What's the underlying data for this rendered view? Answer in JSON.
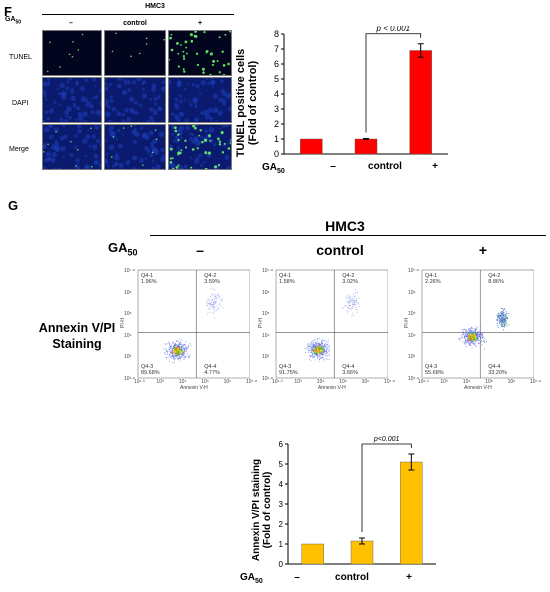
{
  "panel_f": {
    "letter": "F",
    "cell_line": "HMC3",
    "treatment_label": "GA",
    "treatment_sub": "50",
    "columns": [
      "–",
      "control",
      "+"
    ],
    "rows": [
      "TUNEL",
      "DAPI",
      "Merge"
    ]
  },
  "panel_g": {
    "letter": "G",
    "cell_line": "HMC3",
    "treatment_label": "GA",
    "treatment_sub": "50",
    "columns": [
      "–",
      "control",
      "+"
    ],
    "row_label_line1": "Annexin V/PI",
    "row_label_line2": "Staining",
    "flow_x_label": "Annexin V-H",
    "flow_y_label": "PI-H",
    "flow_x_ticks": [
      "10¹·³",
      "10³",
      "10⁴",
      "10⁵",
      "10⁶",
      "10⁷·⁸"
    ],
    "flow_y_ticks": [
      "10⁷·⁸",
      "10⁶",
      "10⁵",
      "10⁴",
      "10³",
      "10¹·⁸"
    ],
    "flow_panels": [
      {
        "q1": "Q4-1",
        "q1v": "1.96%",
        "q2": "Q4-2",
        "q2v": "3.59%",
        "q3": "Q4-3",
        "q3v": "89.68%",
        "q4": "Q4-4",
        "q4v": "4.77%"
      },
      {
        "q1": "Q4-1",
        "q1v": "1.58%",
        "q2": "Q4-2",
        "q2v": "3.02%",
        "q3": "Q4-3",
        "q3v": "91.75%",
        "q4": "Q4-4",
        "q4v": "3.66%"
      },
      {
        "q1": "Q4-1",
        "q1v": "2.26%",
        "q2": "Q4-2",
        "q2v": "8.86%",
        "q3": "Q4-3",
        "q3v": "55.68%",
        "q4": "Q4-4",
        "q4v": "33.20%"
      }
    ]
  },
  "chart_data": [
    {
      "type": "bar",
      "categories": [
        "–",
        "control",
        "+"
      ],
      "values": [
        1.0,
        1.0,
        6.9
      ],
      "errors": [
        0.0,
        0.03,
        0.45
      ],
      "ylabel_line1": "TUNEL positive cells",
      "ylabel_line2": "(Fold of control)",
      "ylim": [
        0,
        8
      ],
      "yticks": [
        "0",
        "1",
        "2",
        "3",
        "4",
        "5",
        "6",
        "7",
        "8"
      ],
      "x_group_label": "GA",
      "x_group_sub": "50",
      "significance": "p < 0.001",
      "color": "#ff0000"
    },
    {
      "type": "bar",
      "categories": [
        "–",
        "control",
        "+"
      ],
      "values": [
        1.0,
        1.15,
        5.1
      ],
      "errors": [
        0.0,
        0.15,
        0.4
      ],
      "ylabel_line1": "Annexin V/PI staining",
      "ylabel_line2": "(Fold of control)",
      "ylim": [
        0,
        6
      ],
      "yticks": [
        "0",
        "1",
        "2",
        "3",
        "4",
        "5",
        "6"
      ],
      "x_group_label": "GA",
      "x_group_sub": "50",
      "significance": "p<0.001",
      "color": "#ffc000"
    }
  ]
}
